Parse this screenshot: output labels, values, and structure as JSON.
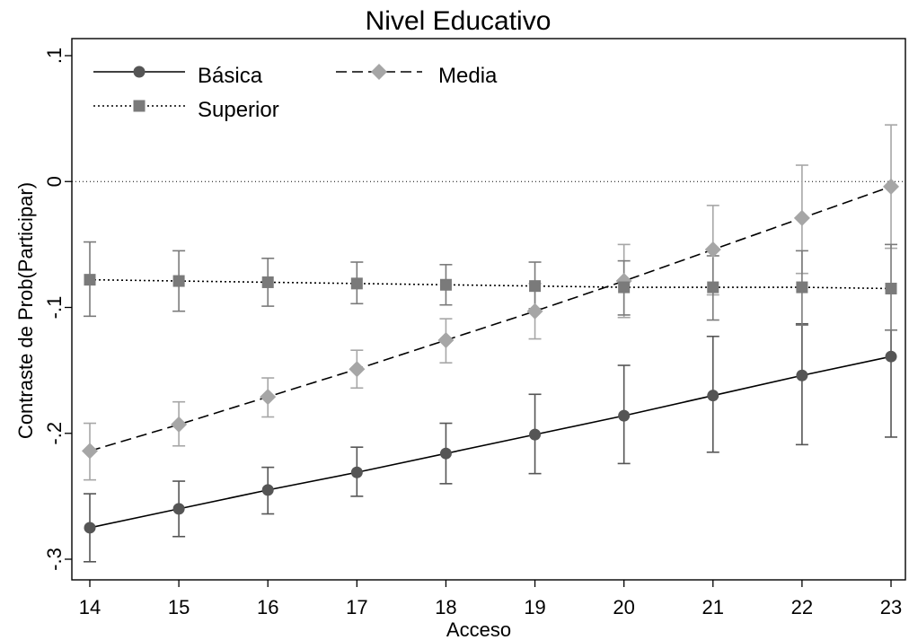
{
  "chart_data": {
    "type": "line",
    "title": "Nivel Educativo",
    "xlabel": "Acceso",
    "ylabel": "Contraste de Prob(Participar)",
    "x": [
      14,
      15,
      16,
      17,
      18,
      19,
      20,
      21,
      22,
      23
    ],
    "xlim": [
      14,
      23
    ],
    "ylim": [
      -0.3,
      0.1
    ],
    "yticks": [
      -0.3,
      -0.2,
      -0.1,
      0,
      0.1
    ],
    "ytick_labels": [
      "-.3",
      "-.2",
      "-.1",
      "0",
      ".1"
    ],
    "reference_line_y": 0,
    "grid": false,
    "legend_position": "top-left",
    "series": [
      {
        "name": "Básica",
        "style": "solid",
        "marker": "circle",
        "color": "#555555",
        "values": [
          -0.275,
          -0.26,
          -0.245,
          -0.231,
          -0.216,
          -0.201,
          -0.186,
          -0.17,
          -0.154,
          -0.139
        ],
        "ci_low": [
          -0.302,
          -0.282,
          -0.264,
          -0.25,
          -0.24,
          -0.232,
          -0.224,
          -0.215,
          -0.209,
          -0.203
        ],
        "ci_high": [
          -0.248,
          -0.238,
          -0.227,
          -0.211,
          -0.192,
          -0.169,
          -0.146,
          -0.123,
          -0.113,
          -0.118
        ]
      },
      {
        "name": "Media",
        "style": "dashed",
        "marker": "diamond",
        "color": "#a6a6a6",
        "values": [
          -0.214,
          -0.193,
          -0.171,
          -0.149,
          -0.126,
          -0.103,
          -0.079,
          -0.054,
          -0.029,
          -0.004
        ],
        "ci_low": [
          -0.237,
          -0.21,
          -0.187,
          -0.164,
          -0.144,
          -0.125,
          -0.108,
          -0.09,
          -0.073,
          -0.053
        ],
        "ci_high": [
          -0.192,
          -0.175,
          -0.156,
          -0.134,
          -0.109,
          -0.081,
          -0.05,
          -0.019,
          0.013,
          0.045
        ]
      },
      {
        "name": "Superior",
        "style": "dotted",
        "marker": "square",
        "color": "#7a7a7a",
        "values": [
          -0.078,
          -0.079,
          -0.08,
          -0.081,
          -0.082,
          -0.083,
          -0.084,
          -0.084,
          -0.084,
          -0.085
        ],
        "ci_low": [
          -0.107,
          -0.103,
          -0.099,
          -0.097,
          -0.098,
          -0.101,
          -0.106,
          -0.11,
          -0.114,
          -0.118
        ],
        "ci_high": [
          -0.048,
          -0.055,
          -0.061,
          -0.064,
          -0.066,
          -0.064,
          -0.063,
          -0.059,
          -0.055,
          -0.05
        ]
      }
    ]
  }
}
